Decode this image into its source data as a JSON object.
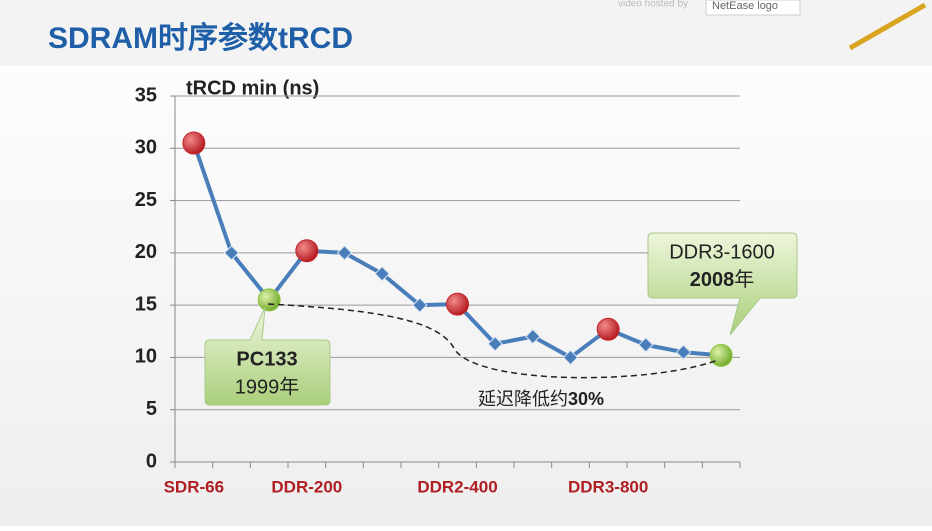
{
  "header": {
    "hosted_by": "video hosted by",
    "logo_alt": "NetEase logo"
  },
  "chart_data": {
    "type": "line",
    "title": "SDRAM时序参数tRCD",
    "y_label": "tRCD min (ns)",
    "categories": [
      "SDR-66",
      null,
      null,
      "DDR-200",
      null,
      null,
      null,
      "DDR2-400",
      null,
      null,
      null,
      "DDR3-800",
      null,
      null,
      null
    ],
    "series": [
      {
        "name": "tRCD min",
        "color": "#4a7ebb",
        "values": [
          30.5,
          20,
          15.5,
          20.2,
          20,
          18,
          15,
          15.1,
          11.3,
          12,
          10,
          12.7,
          11.2,
          10.5,
          10.2
        ],
        "marker_shapes": [
          "circle",
          "diamond",
          "circle",
          "circle",
          "diamond",
          "diamond",
          "diamond",
          "circle",
          "diamond",
          "diamond",
          "diamond",
          "circle",
          "diamond",
          "diamond",
          "circle"
        ],
        "marker_colors": [
          "#c0272d",
          "#4a7ebb",
          "#8cc63f",
          "#c0272d",
          "#4a7ebb",
          "#4a7ebb",
          "#4a7ebb",
          "#c0272d",
          "#4a7ebb",
          "#4a7ebb",
          "#4a7ebb",
          "#c0272d",
          "#4a7ebb",
          "#4a7ebb",
          "#8cc63f"
        ]
      }
    ],
    "ylim": [
      0,
      35
    ],
    "yticks": [
      0,
      5,
      10,
      15,
      20,
      25,
      30,
      35
    ],
    "grid": true,
    "category_label_color": "#b01e23",
    "annotations": [
      {
        "title": "PC133",
        "year": "1999年"
      },
      {
        "title": "DDR3-1600",
        "year": "2008",
        "year_suffix": "年"
      },
      {
        "text": "延迟降低约",
        "bold": "30%"
      }
    ]
  }
}
